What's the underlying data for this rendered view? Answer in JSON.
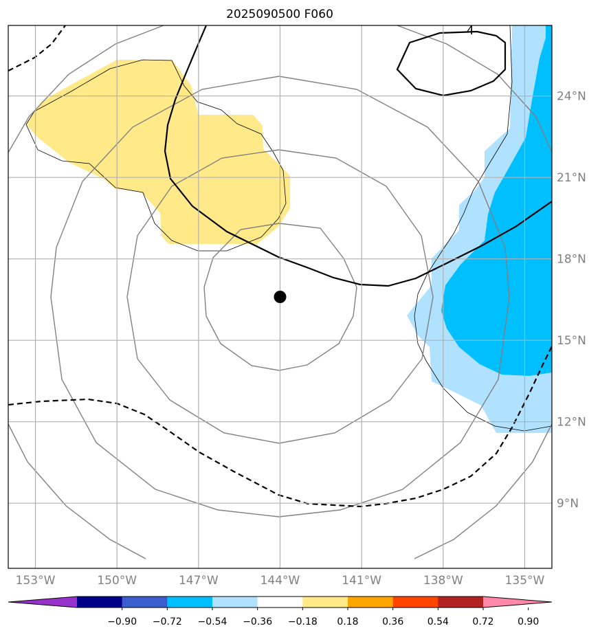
{
  "chart_data": {
    "type": "map-contour",
    "title": "2025090500 F060",
    "lon_ticks": [
      "153°W",
      "150°W",
      "147°W",
      "144°W",
      "141°W",
      "138°W",
      "135°W"
    ],
    "lat_ticks": [
      "24°N",
      "21°N",
      "18°N",
      "15°N",
      "12°N",
      "9°N"
    ],
    "lon_range": [
      -154,
      -134
    ],
    "lat_range": [
      6.6,
      26.6
    ],
    "grid": true,
    "center_marker": {
      "lon": -144.0,
      "lat": 16.6
    },
    "contour_labels": [
      {
        "text": "4",
        "lon": -137.0,
        "lat": 26.4
      }
    ],
    "colorbar": {
      "ticks": [
        "−0.90",
        "−0.72",
        "−0.54",
        "−0.36",
        "−0.18",
        "0.18",
        "0.36",
        "0.54",
        "0.72",
        "0.90"
      ],
      "bounds": [
        -0.9,
        -0.72,
        -0.54,
        -0.36,
        -0.18,
        0.18,
        0.36,
        0.54,
        0.72,
        0.9
      ],
      "colors": [
        "#9932cc",
        "#00008b",
        "#3a5fcd",
        "#00bfff",
        "#b0e2ff",
        "#ffffff",
        "#ffe989",
        "#ffa500",
        "#ff4500",
        "#b22222",
        "#ff88aa"
      ],
      "extend": "both"
    }
  }
}
